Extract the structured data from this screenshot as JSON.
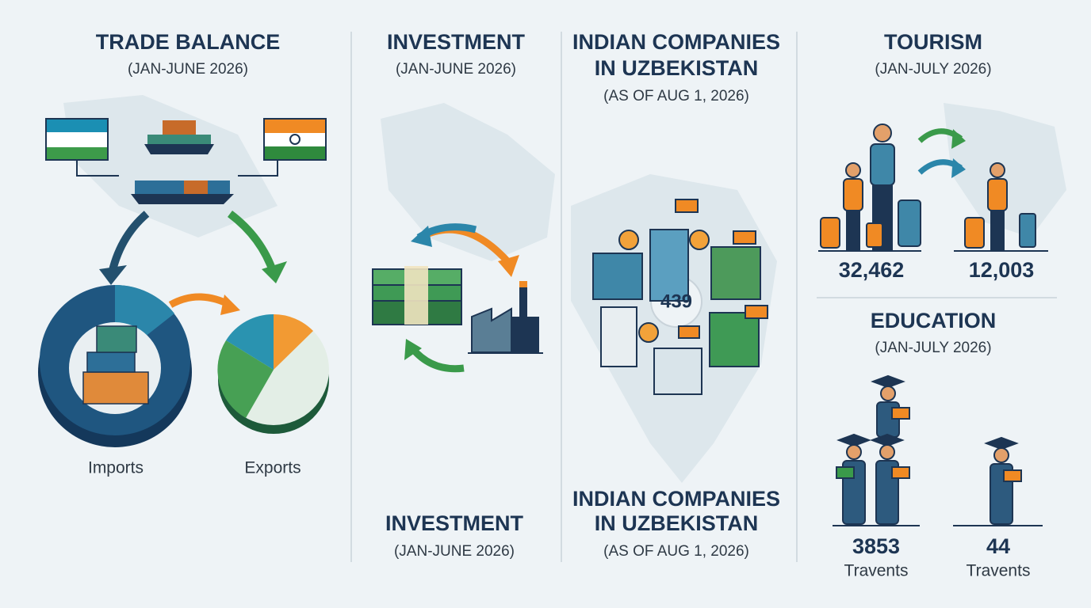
{
  "trade": {
    "title": "TRADE BALANCE",
    "subtitle": "(JAN-JUNE 2026)",
    "imports_label": "Imports",
    "exports_label": "Exports"
  },
  "investment": {
    "title": "INVESTMENT",
    "subtitle": "(JAN-JUNE 2026)",
    "footer_title": "INVESTMENT",
    "footer_subtitle": "(JAN-JUNE 2026)"
  },
  "companies": {
    "title_lines": [
      "INDIAN COMPANIES",
      "IN UZBEKISTAN"
    ],
    "subtitle": "(AS OF AUG 1, 2026)",
    "count": "439",
    "footer_title_lines": [
      "INDIAN COMPANIES",
      "IN UZBEKISTAN"
    ],
    "footer_subtitle": "(AS OF AUG 1, 2026)"
  },
  "tourism": {
    "title": "TOURISM",
    "subtitle": "(JAN-JULY 2026)",
    "figures": [
      "32,462",
      "12,003"
    ]
  },
  "education": {
    "title": "EDUCATION",
    "subtitle": "(JAN-JULY 2026)",
    "figures": [
      {
        "value": "3853",
        "label": "Travents"
      },
      {
        "value": "44",
        "label": "Travents"
      }
    ]
  }
}
